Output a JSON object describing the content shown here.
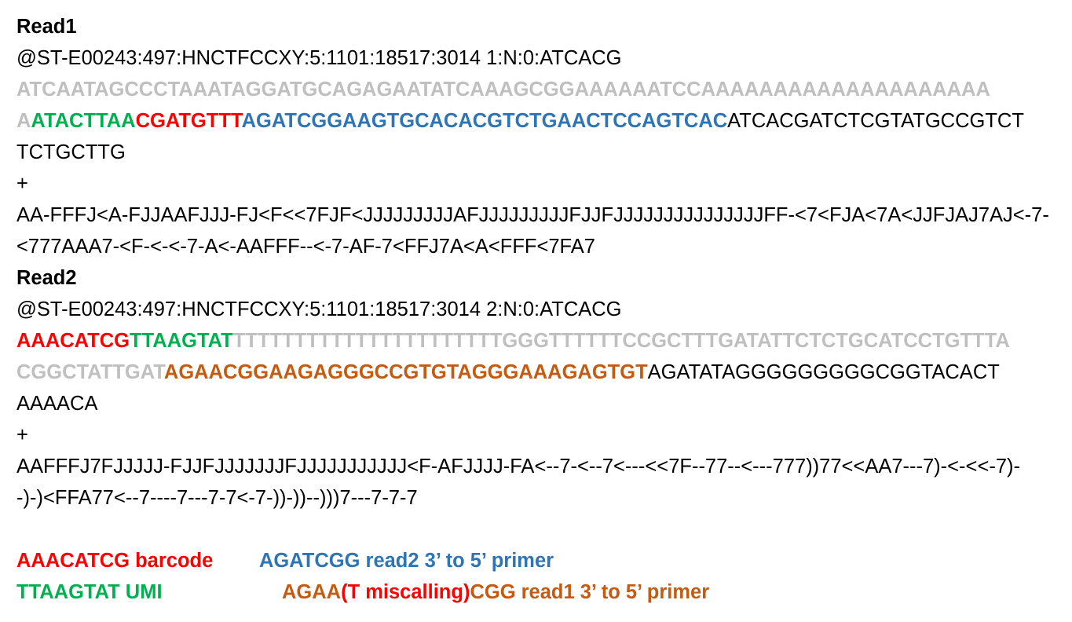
{
  "read1": {
    "title": "Read1",
    "header": "@ST-E00243:497:HNCTFCCXY:5:1101:18517:3014 1:N:0:ATCACG",
    "seq_line1": "ATCAATAGCCCTAAATAGGATGCAGAGAATATCAAAGCGGAAAAAATCCAAAAAAAAAAAAAAAAAAAA",
    "seq_line2_gray": "A",
    "seq_line2_green": "ATACTTAA",
    "seq_line2_red": "CGATGTTT",
    "seq_line2_blue": "AGATCGGAAGTGCACACGTCTGAACTCCAGTCAC",
    "seq_line2_black": "ATCACGATCTCGTATGCCGTCT",
    "seq_line3": "TCTGCTTG",
    "plus": "+",
    "qual_line1": "AA-FFFJ<A-FJJAAFJJJ-FJ<F<<7FJF<JJJJJJJJJAFJJJJJJJJJFJJFJJJJJJJJJJJJJJJFF-<7<FJA<7A<JJFJAJ7AJ<-7-",
    "qual_line2": "<777AAA7-<F-<-<-7-A<-AAFFF--<-7-AF-7<FFJ7A<A<FFF<7FA7"
  },
  "read2": {
    "title": "Read2",
    "header": "@ST-E00243:497:HNCTFCCXY:5:1101:18517:3014 2:N:0:ATCACG",
    "seq_line1_red": "AAACATCG",
    "seq_line1_green": "TTAAGTAT",
    "seq_line1_gray": "TTTTTTTTTTTTTTTTTTTTTTGGGTTTTTTCCGCTTTGATATTCTCTGCATCCTGTTTA",
    "seq_line2_gray": "CGGCTATTGAT",
    "seq_line2_orange": "AGAACGGAAGAGGGCCGTGTAGGGAAAGAGTGT",
    "seq_line2_black": "AGATATAGGGGGGGGGCGGTACACT",
    "seq_line3": "AAAACA",
    "plus": "+",
    "qual_line1": "AAFFFJ7FJJJJJ-FJJFJJJJJJJFJJJJJJJJJJJ<F-AFJJJJ-FA<--7-<--7<---<<7F--77--<---777))77<<AA7---7)-<-<<-7)-",
    "qual_line2": "-)-)<FFA77<--7----7---7-7<-7-))-))--)))7---7-7-7"
  },
  "legend": {
    "barcode": "AAACATCG barcode",
    "read2_primer": "AGATCGG read2 3’ to 5’ primer",
    "umi": "TTAAGTAT UMI",
    "read1_primer_a": "AGAA",
    "read1_primer_b": "(T miscalling)",
    "read1_primer_c": "CGG read1 3’ to 5’ primer"
  },
  "colors": {
    "adapter_gray": "#bfbfbf",
    "umi_green": "#00b050",
    "barcode_red": "#ff0000",
    "read2_primer_blue": "#2e75b6",
    "read1_primer_orange": "#c55a11"
  }
}
